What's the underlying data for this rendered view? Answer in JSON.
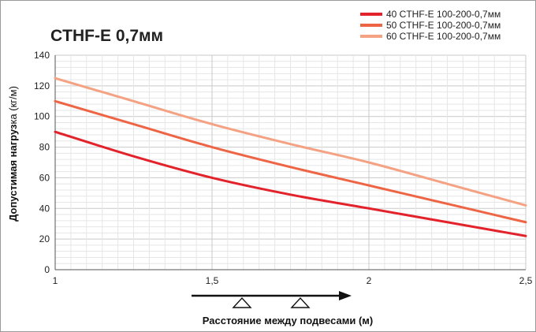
{
  "chart_data": {
    "type": "line",
    "title": "CTHF-E 0,7мм",
    "xlabel": "Расстояние между подвесами (м)",
    "ylabel_bold": "Допустимая нагруз",
    "ylabel_rest": "ка (кг/м)",
    "xlim": [
      1,
      2.5
    ],
    "ylim": [
      0,
      140
    ],
    "x_ticks": [
      {
        "value": 1,
        "label": "1"
      },
      {
        "value": 1.5,
        "label": "1,5"
      },
      {
        "value": 2,
        "label": "2"
      },
      {
        "value": 2.5,
        "label": "2,5"
      }
    ],
    "y_ticks": [
      {
        "value": 0,
        "label": "0"
      },
      {
        "value": 20,
        "label": "20"
      },
      {
        "value": 40,
        "label": "40"
      },
      {
        "value": 60,
        "label": "60"
      },
      {
        "value": 80,
        "label": "80"
      },
      {
        "value": 100,
        "label": "100"
      },
      {
        "value": 120,
        "label": "120"
      },
      {
        "value": 140,
        "label": "140"
      }
    ],
    "grid": true,
    "legend_position": "top-right",
    "series": [
      {
        "name": "40 CTHF-E 100-200-0,7мм",
        "color": "#e3232b",
        "x": [
          1,
          1.25,
          1.5,
          1.75,
          2,
          2.25,
          2.5
        ],
        "y": [
          90,
          74,
          60,
          49,
          40,
          31,
          22
        ]
      },
      {
        "name": "50 CTHF-E 100-200-0,7мм",
        "color": "#ee6545",
        "x": [
          1,
          1.25,
          1.5,
          1.75,
          2,
          2.25,
          2.5
        ],
        "y": [
          110,
          95,
          80,
          67,
          55,
          43,
          31
        ]
      },
      {
        "name": "60 CTHF-E 100-200-0,7мм",
        "color": "#f4a283",
        "x": [
          1,
          1.25,
          1.5,
          1.75,
          2,
          2.25,
          2.5
        ],
        "y": [
          125,
          110,
          95,
          82,
          70,
          56,
          42
        ]
      }
    ]
  }
}
